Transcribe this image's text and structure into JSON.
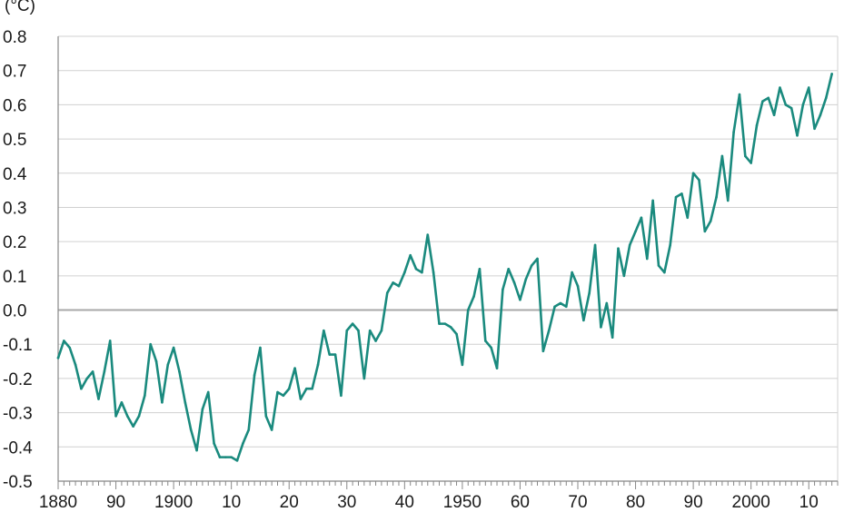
{
  "chart_data": {
    "type": "line",
    "title": "",
    "ylabel": "(°C)",
    "xlabel": "",
    "xlim": [
      1880,
      2015
    ],
    "ylim": [
      -0.5,
      0.8
    ],
    "yticks": [
      -0.5,
      -0.4,
      -0.3,
      -0.2,
      -0.1,
      0.0,
      0.1,
      0.2,
      0.3,
      0.4,
      0.5,
      0.6,
      0.7,
      0.8
    ],
    "ytick_labels": [
      "-0.5",
      "-0.4",
      "-0.3",
      "-0.2",
      "-0.1",
      "0.0",
      "0.1",
      "0.2",
      "0.3",
      "0.4",
      "0.5",
      "0.6",
      "0.7",
      "0.8"
    ],
    "xticks": [
      1880,
      1890,
      1900,
      1910,
      1920,
      1930,
      1940,
      1950,
      1960,
      1970,
      1980,
      1990,
      2000,
      2010
    ],
    "xtick_labels": [
      "1880",
      "90",
      "1900",
      "10",
      "20",
      "30",
      "40",
      "1950",
      "60",
      "70",
      "80",
      "90",
      "2000",
      "10"
    ],
    "grid": true,
    "zero_line": true,
    "colors": {
      "line": "#1a8a7e",
      "grid": "#d0d0d0",
      "zero": "#a8a8a8",
      "axis": "#888888"
    },
    "series": [
      {
        "x": [
          1880,
          1881,
          1882,
          1883,
          1884,
          1885,
          1886,
          1887,
          1888,
          1889,
          1890,
          1891,
          1892,
          1893,
          1894,
          1895,
          1896,
          1897,
          1898,
          1899,
          1900,
          1901,
          1902,
          1903,
          1904,
          1905,
          1906,
          1907,
          1908,
          1909,
          1910,
          1911,
          1912,
          1913,
          1914,
          1915,
          1916,
          1917,
          1918,
          1919,
          1920,
          1921,
          1922,
          1923,
          1924,
          1925,
          1926,
          1927,
          1928,
          1929,
          1930,
          1931,
          1932,
          1933,
          1934,
          1935,
          1936,
          1937,
          1938,
          1939,
          1940,
          1941,
          1942,
          1943,
          1944,
          1945,
          1946,
          1947,
          1948,
          1949,
          1950,
          1951,
          1952,
          1953,
          1954,
          1955,
          1956,
          1957,
          1958,
          1959,
          1960,
          1961,
          1962,
          1963,
          1964,
          1965,
          1966,
          1967,
          1968,
          1969,
          1970,
          1971,
          1972,
          1973,
          1974,
          1975,
          1976,
          1977,
          1978,
          1979,
          1980,
          1981,
          1982,
          1983,
          1984,
          1985,
          1986,
          1987,
          1988,
          1989,
          1990,
          1991,
          1992,
          1993,
          1994,
          1995,
          1996,
          1997,
          1998,
          1999,
          2000,
          2001,
          2002,
          2003,
          2004,
          2005,
          2006,
          2007,
          2008,
          2009,
          2010,
          2011,
          2012,
          2013,
          2014
        ],
        "values": [
          -0.14,
          -0.09,
          -0.11,
          -0.16,
          -0.23,
          -0.2,
          -0.18,
          -0.26,
          -0.18,
          -0.09,
          -0.31,
          -0.27,
          -0.31,
          -0.34,
          -0.31,
          -0.25,
          -0.1,
          -0.15,
          -0.27,
          -0.16,
          -0.11,
          -0.18,
          -0.27,
          -0.35,
          -0.41,
          -0.29,
          -0.24,
          -0.39,
          -0.43,
          -0.43,
          -0.43,
          -0.44,
          -0.39,
          -0.35,
          -0.19,
          -0.11,
          -0.31,
          -0.35,
          -0.24,
          -0.25,
          -0.23,
          -0.17,
          -0.26,
          -0.23,
          -0.23,
          -0.16,
          -0.06,
          -0.13,
          -0.13,
          -0.25,
          -0.06,
          -0.04,
          -0.06,
          -0.2,
          -0.06,
          -0.09,
          -0.06,
          0.05,
          0.08,
          0.07,
          0.11,
          0.16,
          0.12,
          0.11,
          0.22,
          0.11,
          -0.04,
          -0.04,
          -0.05,
          -0.07,
          -0.16,
          0.0,
          0.04,
          0.12,
          -0.09,
          -0.11,
          -0.17,
          0.06,
          0.12,
          0.08,
          0.03,
          0.09,
          0.13,
          0.15,
          -0.12,
          -0.06,
          0.01,
          0.02,
          0.01,
          0.11,
          0.07,
          -0.03,
          0.05,
          0.19,
          -0.05,
          0.02,
          -0.08,
          0.18,
          0.1,
          0.19,
          0.23,
          0.27,
          0.15,
          0.32,
          0.13,
          0.11,
          0.19,
          0.33,
          0.34,
          0.27,
          0.4,
          0.38,
          0.23,
          0.26,
          0.33,
          0.45,
          0.32,
          0.52,
          0.63,
          0.45,
          0.43,
          0.54,
          0.61,
          0.62,
          0.57,
          0.65,
          0.6,
          0.59,
          0.51,
          0.6,
          0.65,
          0.53,
          0.57,
          0.62,
          0.69
        ]
      }
    ]
  }
}
